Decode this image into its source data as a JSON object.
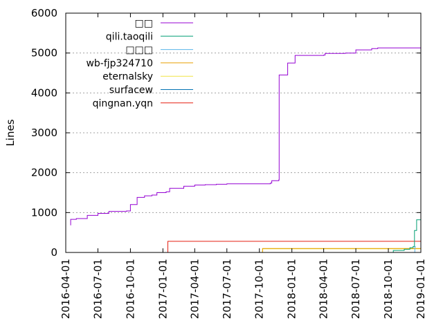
{
  "chart_data": {
    "type": "line",
    "title": "",
    "xlabel": "",
    "ylabel": "Lines",
    "ylim": [
      0,
      6000
    ],
    "yticks": [
      "0",
      "1000",
      "2000",
      "3000",
      "4000",
      "5000",
      "6000"
    ],
    "xticks": [
      "2016-04-01",
      "2016-07-01",
      "2016-10-01",
      "2017-01-01",
      "2017-04-01",
      "2017-07-01",
      "2017-10-01",
      "2018-01-01",
      "2018-04-01",
      "2018-07-01",
      "2018-10-01",
      "2019-01-01"
    ],
    "xlim": [
      "2016-04-01",
      "2019-01-01"
    ],
    "grid": "horizontal",
    "legend_position": "top-left",
    "series": [
      {
        "name": "□□",
        "color": "#9400d3",
        "points": [
          [
            "2016-04-15",
            680
          ],
          [
            "2016-04-15",
            830
          ],
          [
            "2016-05-01",
            850
          ],
          [
            "2016-06-01",
            930
          ],
          [
            "2016-07-01",
            980
          ],
          [
            "2016-07-20",
            980
          ],
          [
            "2016-08-01",
            1030
          ],
          [
            "2016-09-20",
            1040
          ],
          [
            "2016-10-01",
            1200
          ],
          [
            "2016-10-20",
            1380
          ],
          [
            "2016-11-10",
            1420
          ],
          [
            "2016-12-01",
            1440
          ],
          [
            "2016-12-15",
            1500
          ],
          [
            "2017-01-10",
            1520
          ],
          [
            "2017-01-20",
            1610
          ],
          [
            "2017-03-01",
            1660
          ],
          [
            "2017-04-01",
            1690
          ],
          [
            "2017-05-01",
            1700
          ],
          [
            "2017-06-01",
            1710
          ],
          [
            "2017-07-01",
            1720
          ],
          [
            "2017-11-01",
            1740
          ],
          [
            "2017-11-05",
            1800
          ],
          [
            "2017-11-25",
            1820
          ],
          [
            "2017-11-26",
            4450
          ],
          [
            "2017-12-20",
            4750
          ],
          [
            "2018-01-10",
            4940
          ],
          [
            "2018-04-01",
            4950
          ],
          [
            "2018-04-05",
            4990
          ],
          [
            "2018-06-01",
            5000
          ],
          [
            "2018-07-01",
            5080
          ],
          [
            "2018-08-15",
            5110
          ],
          [
            "2018-09-01",
            5130
          ],
          [
            "2019-01-01",
            5130
          ]
        ]
      },
      {
        "name": "qili.taoqili",
        "color": "#009e73",
        "points": [
          [
            "2018-09-25",
            0
          ],
          [
            "2018-10-15",
            50
          ],
          [
            "2018-11-15",
            80
          ],
          [
            "2018-12-01",
            120
          ],
          [
            "2018-12-10",
            150
          ],
          [
            "2018-12-14",
            550
          ],
          [
            "2018-12-20",
            820
          ],
          [
            "2019-01-01",
            820
          ]
        ]
      },
      {
        "name": "□□□",
        "color": "#56b4e9",
        "points": [
          [
            "2018-09-25",
            0
          ],
          [
            "2018-12-15",
            140
          ],
          [
            "2018-12-18",
            140
          ]
        ]
      },
      {
        "name": "wb-fjp324710",
        "color": "#e69f00",
        "points": [
          [
            "2017-10-05",
            0
          ],
          [
            "2017-10-10",
            100
          ],
          [
            "2019-01-01",
            100
          ]
        ]
      },
      {
        "name": "eternalsky",
        "color": "#f0e442",
        "points": [
          [
            "2017-10-05",
            0
          ],
          [
            "2017-10-10",
            90
          ],
          [
            "2019-01-01",
            90
          ]
        ]
      },
      {
        "name": "surfacew",
        "color": "#0072b2",
        "points": []
      },
      {
        "name": "qingnan.yqn",
        "color": "#e51e10",
        "points": [
          [
            "2016-12-25",
            0
          ],
          [
            "2017-01-15",
            280
          ],
          [
            "2019-01-01",
            280
          ]
        ]
      }
    ]
  }
}
